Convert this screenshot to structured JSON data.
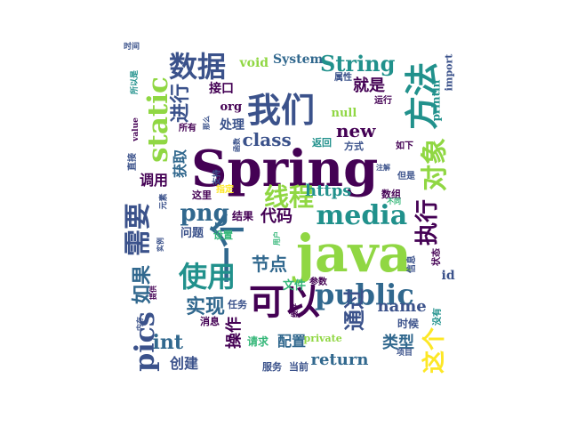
{
  "palette": {
    "dark_purple": "#440154",
    "indigo": "#3b528b",
    "blue": "#31688e",
    "teal": "#21918c",
    "green": "#35b779",
    "lime": "#90d743",
    "yellow": "#fde725"
  },
  "words": [
    {
      "text": "Spring",
      "color": "#440154"
    },
    {
      "text": "java",
      "color": "#90d743"
    },
    {
      "text": "我们",
      "color": "#3b528b"
    },
    {
      "text": "方法",
      "color": "#21918c"
    },
    {
      "text": "可以",
      "color": "#440154"
    },
    {
      "text": "一个",
      "color": "#31688e"
    },
    {
      "text": "使用",
      "color": "#21918c"
    },
    {
      "text": "public",
      "color": "#31688e"
    },
    {
      "text": "static",
      "color": "#90d743"
    },
    {
      "text": "media",
      "color": "#21918c"
    },
    {
      "text": "数据",
      "color": "#3b528b"
    },
    {
      "text": "对象",
      "color": "#90d743"
    },
    {
      "text": "线程",
      "color": "#90d743"
    },
    {
      "text": "需要",
      "color": "#3b528b"
    },
    {
      "text": "pics",
      "color": "#3b528b"
    },
    {
      "text": "png",
      "color": "#31688e"
    },
    {
      "text": "执行",
      "color": "#440154"
    },
    {
      "text": "String",
      "color": "#21918c"
    },
    {
      "text": "进行",
      "color": "#3b528b"
    },
    {
      "text": "如果",
      "color": "#31688e"
    },
    {
      "text": "实现",
      "color": "#31688e"
    },
    {
      "text": "通过",
      "color": "#3b528b"
    },
    {
      "text": "节点",
      "color": "#31688e"
    },
    {
      "text": "这个",
      "color": "#fde725"
    },
    {
      "text": "int",
      "color": "#31688e"
    },
    {
      "text": "new",
      "color": "#440154"
    },
    {
      "text": "class",
      "color": "#3b528b"
    },
    {
      "text": "https",
      "color": "#21918c"
    },
    {
      "text": "代码",
      "color": "#440154"
    },
    {
      "text": "name",
      "color": "#3b528b"
    },
    {
      "text": "类型",
      "color": "#31688e"
    },
    {
      "text": "return",
      "color": "#31688e"
    },
    {
      "text": "操作",
      "color": "#440154"
    },
    {
      "text": "就是",
      "color": "#440154"
    },
    {
      "text": "System",
      "color": "#31688e"
    },
    {
      "text": "void",
      "color": "#90d743"
    },
    {
      "text": "获取",
      "color": "#31688e"
    },
    {
      "text": "调用",
      "color": "#440154"
    },
    {
      "text": "创建",
      "color": "#3b528b"
    },
    {
      "text": "配置",
      "color": "#31688e"
    },
    {
      "text": "处理",
      "color": "#3b528b"
    },
    {
      "text": "接口",
      "color": "#440154"
    },
    {
      "text": "null",
      "color": "#90d743"
    },
    {
      "text": "org",
      "color": "#440154"
    },
    {
      "text": "文件",
      "color": "#35b779"
    },
    {
      "text": "时候",
      "color": "#3b528b"
    },
    {
      "text": "问题",
      "color": "#3b528b"
    },
    {
      "text": "结果",
      "color": "#440154"
    },
    {
      "text": "id",
      "color": "#3b528b"
    },
    {
      "text": "private",
      "color": "#90d743"
    },
    {
      "text": "服务",
      "color": "#3b528b"
    },
    {
      "text": "当前",
      "color": "#3b528b"
    },
    {
      "text": "println",
      "color": "#21918c"
    },
    {
      "text": "import",
      "color": "#3b528b"
    },
    {
      "text": "设置",
      "color": "#35b779"
    },
    {
      "text": "任务",
      "color": "#3b528b"
    },
    {
      "text": "请求",
      "color": "#35b779"
    },
    {
      "text": "参数",
      "color": "#440154"
    },
    {
      "text": "方式",
      "color": "#3b528b"
    },
    {
      "text": "返回",
      "color": "#21918c"
    },
    {
      "text": "消息",
      "color": "#440154"
    },
    {
      "text": "这里",
      "color": "#440154"
    },
    {
      "text": "指定",
      "color": "#fde725"
    },
    {
      "text": "数组",
      "color": "#440154"
    },
    {
      "text": "如下",
      "color": "#440154"
    },
    {
      "text": "但是",
      "color": "#3b528b"
    },
    {
      "text": "所有",
      "color": "#440154"
    },
    {
      "text": "运行",
      "color": "#440154"
    },
    {
      "text": "属性",
      "color": "#3b528b"
    },
    {
      "text": "状态",
      "color": "#440154"
    },
    {
      "text": "没有",
      "color": "#21918c"
    },
    {
      "text": "信息",
      "color": "#3b528b"
    },
    {
      "text": "项目",
      "color": "#3b528b"
    },
    {
      "text": "直接",
      "color": "#3b528b"
    },
    {
      "text": "元素",
      "color": "#3b528b"
    },
    {
      "text": "支持",
      "color": "#3b528b"
    },
    {
      "text": "value",
      "color": "#440154"
    },
    {
      "text": "时间",
      "color": "#3b528b"
    },
    {
      "text": "所以是",
      "color": "#21918c"
    },
    {
      "text": "那么",
      "color": "#3b528b"
    },
    {
      "text": "注解",
      "color": "#3b528b"
    },
    {
      "text": "函数",
      "color": "#3b528b"
    },
    {
      "text": "不同",
      "color": "#35b779"
    },
    {
      "text": "用户",
      "color": "#35b779"
    },
    {
      "text": "实例",
      "color": "#3b528b"
    },
    {
      "text": "提供",
      "color": "#440154"
    },
    {
      "text": "内存",
      "color": "#3b528b"
    },
    {
      "text": "缓存",
      "color": "#440154"
    }
  ]
}
